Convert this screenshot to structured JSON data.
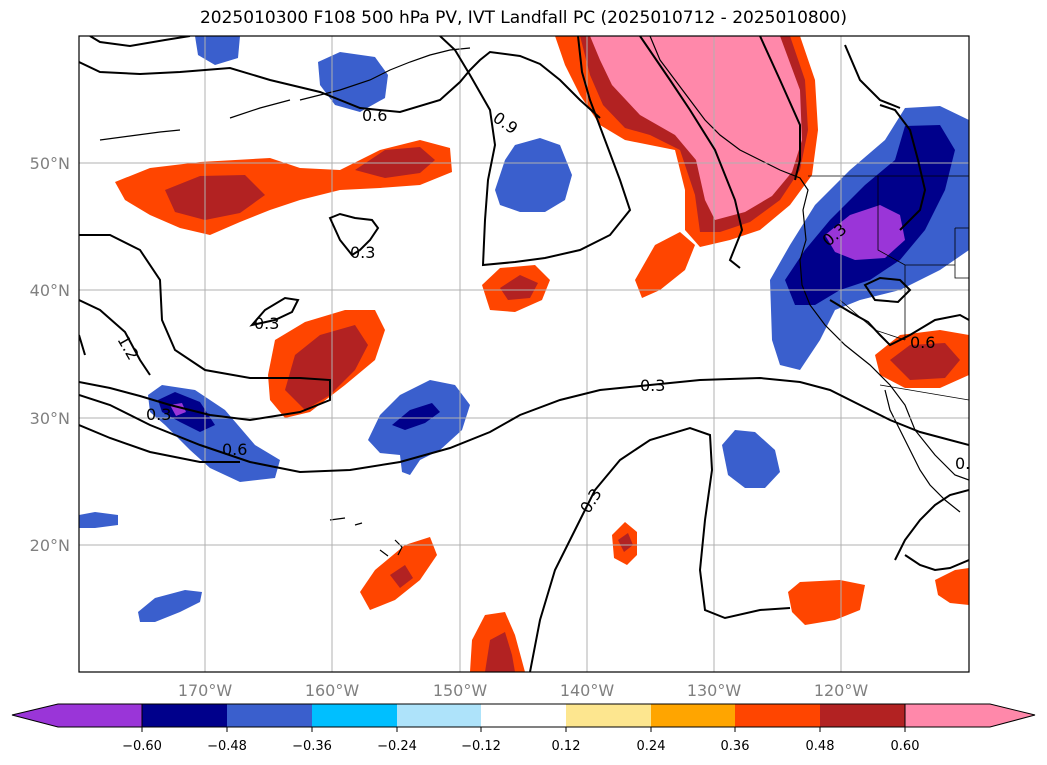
{
  "title": "2025010300 F108 500 hPa PV, IVT Landfall PC (2025010712 - 2025010800)",
  "map": {
    "lon_labels": [
      "170°W",
      "160°W",
      "150°W",
      "140°W",
      "130°W",
      "120°W"
    ],
    "lat_labels": [
      "50°N",
      "40°N",
      "30°N",
      "20°N"
    ],
    "contour_labels": [
      "0.6",
      "0.9",
      "0.3",
      "0.3",
      "1.2",
      "0.3",
      "0.6",
      "0.3",
      "0.3",
      "0.3",
      "0.6",
      "0."
    ]
  },
  "colorbar": {
    "tick_labels": [
      "−0.60",
      "−0.48",
      "−0.36",
      "−0.24",
      "−0.12",
      "0.12",
      "0.24",
      "0.36",
      "0.48",
      "0.60"
    ],
    "colors": [
      "#9a35d8",
      "#00008b",
      "#3a5fcd",
      "#00bfff",
      "#aee3fa",
      "#ffffff",
      "#fde68f",
      "#ffa500",
      "#ff4500",
      "#b22222",
      "#ff88aa"
    ]
  },
  "palette": {
    "purple": "#9a35d8",
    "navy": "#00008b",
    "blue": "#3a5fcd",
    "cyan": "#00bfff",
    "light_blue": "#aee3fa",
    "yellow": "#fde68f",
    "orange": "#ffa500",
    "red_orange": "#ff4500",
    "firebrick": "#b22222",
    "pink": "#ff88aa"
  }
}
